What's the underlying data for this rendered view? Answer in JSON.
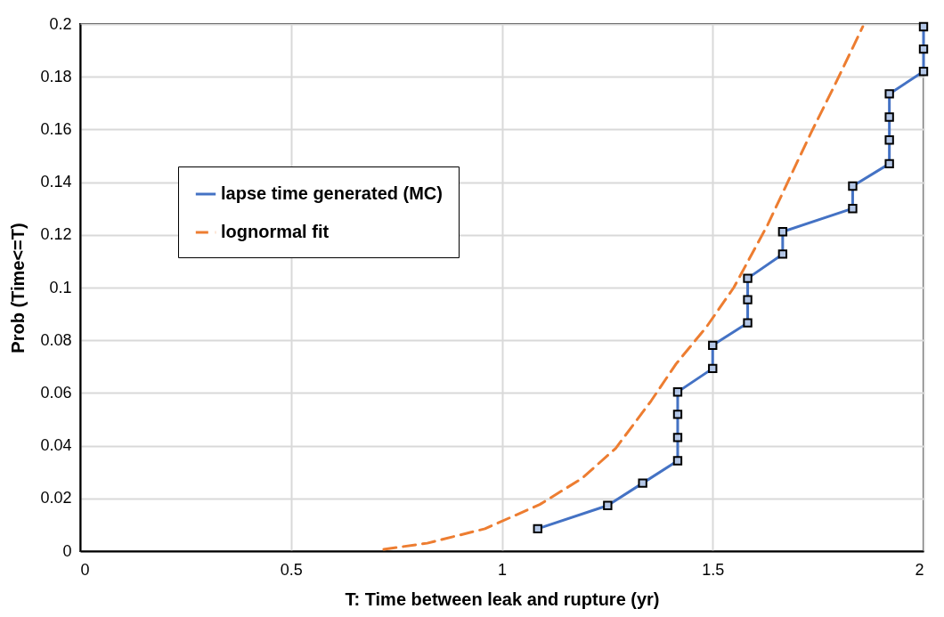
{
  "chart_data": {
    "type": "line",
    "xlabel": "T: Time between leak and rupture (yr)",
    "ylabel": "Prob (Time<=T)",
    "xlim": [
      0,
      2
    ],
    "xticks": [
      0,
      0.5,
      1,
      1.5,
      2
    ],
    "ylim": [
      0,
      0.2
    ],
    "yticks": [
      0,
      0.02,
      0.04,
      0.06,
      0.08,
      0.1,
      0.12,
      0.14,
      0.16,
      0.18,
      0.2
    ],
    "grid": true,
    "legend": "left",
    "series": [
      {
        "name": "lapse time generated (MC)",
        "color": "#4472c4",
        "marker": "square",
        "line_style": "solid",
        "x": [
          1.085,
          1.251,
          1.334,
          1.417,
          1.417,
          1.417,
          1.417,
          1.5,
          1.5,
          1.583,
          1.583,
          1.583,
          1.666,
          1.666,
          1.832,
          1.832,
          1.919,
          1.919,
          1.919,
          1.919,
          2.0,
          2.0,
          2.0
        ],
        "values": [
          0.0085,
          0.0173,
          0.0258,
          0.0343,
          0.0431,
          0.0519,
          0.0604,
          0.0693,
          0.0781,
          0.0866,
          0.0954,
          0.1035,
          0.1127,
          0.1212,
          0.13,
          0.1385,
          0.147,
          0.156,
          0.1647,
          0.1735,
          0.182,
          0.1905,
          0.199
        ]
      },
      {
        "name": "lognormal fit",
        "color": "#ed7d31",
        "marker": "none",
        "line_style": "dashed",
        "x": [
          0.72,
          0.823,
          0.96,
          1.09,
          1.19,
          1.27,
          1.354,
          1.413,
          1.485,
          1.55,
          1.631,
          1.675,
          1.734,
          1.79,
          1.856
        ],
        "values": [
          0.0007,
          0.003,
          0.0085,
          0.0177,
          0.0276,
          0.039,
          0.057,
          0.071,
          0.085,
          0.1,
          0.124,
          0.139,
          0.159,
          0.177,
          0.199
        ]
      }
    ]
  }
}
